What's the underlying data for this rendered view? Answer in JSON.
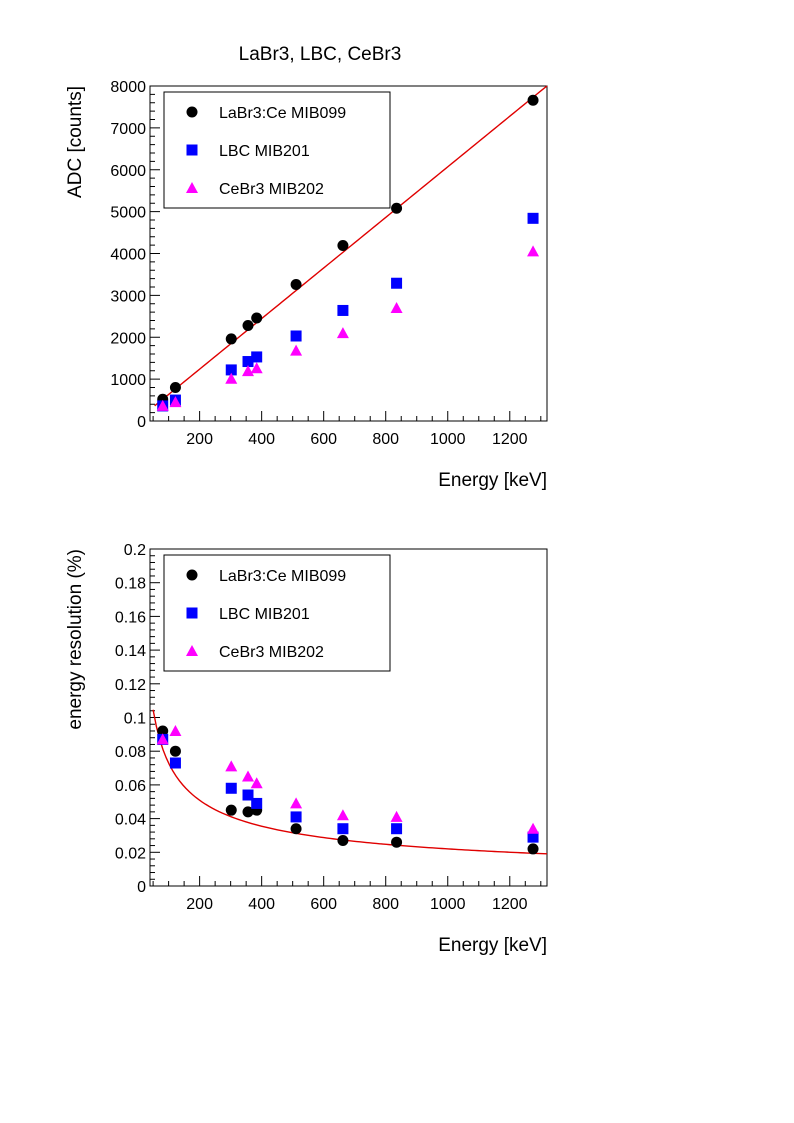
{
  "page": {
    "title": "LaBr3, LBC, CeBr3"
  },
  "colors": {
    "labr3": "#000000",
    "lbc": "#0000ff",
    "cebr3": "#ff00ff",
    "fit": "#e00000"
  },
  "chart_data": [
    {
      "type": "scatter",
      "xlabel": "Energy [keV]",
      "ylabel": "ADC [counts]",
      "xlim": [
        40,
        1320
      ],
      "ylim": [
        0,
        8000
      ],
      "xticks": [
        200,
        400,
        600,
        800,
        1000,
        1200
      ],
      "yticks": [
        0,
        1000,
        2000,
        3000,
        4000,
        5000,
        6000,
        7000,
        8000
      ],
      "xtick_labels": [
        "200",
        "400",
        "600",
        "800",
        "1000",
        "1200"
      ],
      "ytick_labels": [
        "0",
        "1000",
        "2000",
        "3000",
        "4000",
        "5000",
        "6000",
        "7000",
        "8000"
      ],
      "legend": [
        "LaBr3:Ce MIB099",
        "LBC MIB201",
        "CeBr3 MIB202"
      ],
      "legend_position": "top-left",
      "series": [
        {
          "name": "LaBr3:Ce MIB099",
          "marker": "circle",
          "color": "#000000",
          "x": [
            81,
            122,
            302,
            356,
            384,
            511,
            662,
            835,
            1275
          ],
          "y": [
            520,
            800,
            1960,
            2280,
            2460,
            3260,
            4190,
            5080,
            7660
          ]
        },
        {
          "name": "LBC MIB201",
          "marker": "square",
          "color": "#0000ff",
          "x": [
            81,
            122,
            302,
            356,
            384,
            511,
            662,
            835,
            1275
          ],
          "y": [
            360,
            500,
            1220,
            1420,
            1530,
            2030,
            2640,
            3290,
            4840
          ]
        },
        {
          "name": "CeBr3 MIB202",
          "marker": "triangle",
          "color": "#ff00ff",
          "x": [
            81,
            122,
            302,
            356,
            384,
            511,
            662,
            835,
            1275
          ],
          "y": [
            360,
            450,
            1010,
            1190,
            1260,
            1680,
            2100,
            2700,
            4050
          ]
        }
      ],
      "fit": {
        "type": "linear",
        "color": "#e00000",
        "slope": 6.04,
        "intercept": 30,
        "x_range": [
          55,
          1320
        ]
      }
    },
    {
      "type": "scatter",
      "xlabel": "Energy [keV]",
      "ylabel": "energy resolution (%)",
      "xlim": [
        40,
        1320
      ],
      "ylim": [
        0,
        0.2
      ],
      "xticks": [
        200,
        400,
        600,
        800,
        1000,
        1200
      ],
      "yticks": [
        0,
        0.02,
        0.04,
        0.06,
        0.08,
        0.1,
        0.12,
        0.14,
        0.16,
        0.18,
        0.2
      ],
      "xtick_labels": [
        "200",
        "400",
        "600",
        "800",
        "1000",
        "1200"
      ],
      "ytick_labels": [
        "0",
        "0.02",
        "0.04",
        "0.06",
        "0.08",
        "0.1",
        "0.12",
        "0.14",
        "0.16",
        "0.18",
        "0.2"
      ],
      "legend": [
        "LaBr3:Ce MIB099",
        "LBC MIB201",
        "CeBr3 MIB202"
      ],
      "legend_position": "top-left",
      "series": [
        {
          "name": "LaBr3:Ce MIB099",
          "marker": "circle",
          "color": "#000000",
          "x": [
            81,
            122,
            302,
            356,
            384,
            511,
            662,
            835,
            1275
          ],
          "y": [
            0.092,
            0.08,
            0.045,
            0.044,
            0.045,
            0.034,
            0.027,
            0.026,
            0.022
          ]
        },
        {
          "name": "LBC MIB201",
          "marker": "square",
          "color": "#0000ff",
          "x": [
            81,
            122,
            302,
            356,
            384,
            511,
            662,
            835,
            1275
          ],
          "y": [
            0.087,
            0.073,
            0.058,
            0.054,
            0.049,
            0.041,
            0.034,
            0.034,
            0.029
          ]
        },
        {
          "name": "CeBr3 MIB202",
          "marker": "triangle",
          "color": "#ff00ff",
          "x": [
            81,
            122,
            302,
            356,
            384,
            511,
            662,
            835,
            1275
          ],
          "y": [
            0.087,
            0.092,
            0.071,
            0.065,
            0.061,
            0.049,
            0.042,
            0.041,
            0.034
          ]
        }
      ],
      "fit": {
        "type": "power",
        "color": "#e00000",
        "a": 0.8,
        "b": -0.52,
        "x_range": [
          50,
          1320
        ]
      }
    }
  ]
}
